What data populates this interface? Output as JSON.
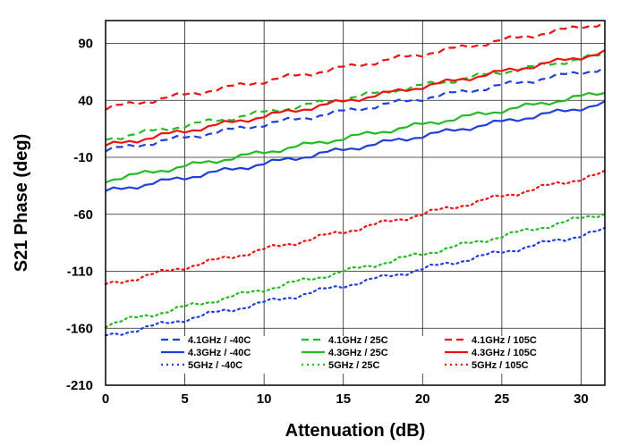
{
  "chart_data": {
    "type": "line",
    "title": "",
    "xlabel": "Attenuation (dB)",
    "ylabel": "S21 Phase (deg)",
    "xlim": [
      0,
      31.5
    ],
    "ylim": [
      -210,
      110
    ],
    "x_ticks": [
      0,
      5,
      10,
      15,
      20,
      25,
      30
    ],
    "y_ticks": [
      -210,
      -160,
      -110,
      -60,
      -10,
      40,
      90
    ],
    "grid": true,
    "legend_position": "bottom-center",
    "series": [
      {
        "name": "4.1GHz / -40C",
        "color": "#1f3fdd",
        "dash": "dashed",
        "x": [
          0,
          31.5
        ],
        "y": [
          -4,
          68
        ]
      },
      {
        "name": "4.3GHz / -40C",
        "color": "#1f3fdd",
        "dash": "solid",
        "x": [
          0,
          31.5
        ],
        "y": [
          -40,
          37
        ]
      },
      {
        "name": "5GHz / -40C",
        "color": "#1f3fdd",
        "dash": "dotted",
        "x": [
          0,
          31.5
        ],
        "y": [
          -167,
          -74
        ]
      },
      {
        "name": "4.1GHz / 25C",
        "color": "#22bb22",
        "dash": "dashed",
        "x": [
          0,
          31.5
        ],
        "y": [
          6,
          80
        ]
      },
      {
        "name": "4.3GHz / 25C",
        "color": "#22bb22",
        "dash": "solid",
        "x": [
          0,
          31.5
        ],
        "y": [
          -30,
          47
        ]
      },
      {
        "name": "5GHz / 25C",
        "color": "#22bb22",
        "dash": "dotted",
        "x": [
          0,
          31.5
        ],
        "y": [
          -157,
          -59
        ]
      },
      {
        "name": "4.1GHz / 105C",
        "color": "#ee1111",
        "dash": "dashed",
        "x": [
          0,
          31.5
        ],
        "y": [
          33,
          108
        ]
      },
      {
        "name": "4.3GHz / 105C",
        "color": "#ee1111",
        "dash": "solid",
        "x": [
          0,
          31.5
        ],
        "y": [
          0,
          82
        ]
      },
      {
        "name": "5GHz / 105C",
        "color": "#ee1111",
        "dash": "dotted",
        "x": [
          0,
          31.5
        ],
        "y": [
          -122,
          -24
        ]
      }
    ]
  }
}
